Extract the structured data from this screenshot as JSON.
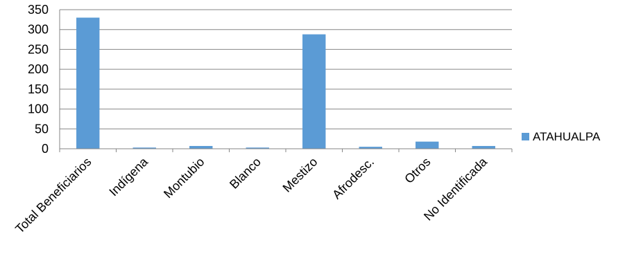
{
  "chart_data": {
    "type": "bar",
    "title": "",
    "xlabel": "",
    "ylabel": "",
    "categories": [
      "Total Beneficiarios",
      "Indígena",
      "Montubio",
      "Blanco",
      "Mestizo",
      "Afrodesc.",
      "Otros",
      "No Identificada"
    ],
    "series": [
      {
        "name": "ATAHUALPA",
        "values": [
          330,
          3,
          7,
          3,
          288,
          5,
          18,
          7
        ],
        "color": "#5B9BD5"
      }
    ],
    "ylim": [
      0,
      350
    ],
    "yticks": [
      0,
      50,
      100,
      150,
      200,
      250,
      300,
      350
    ],
    "grid": true,
    "legend": "right"
  }
}
